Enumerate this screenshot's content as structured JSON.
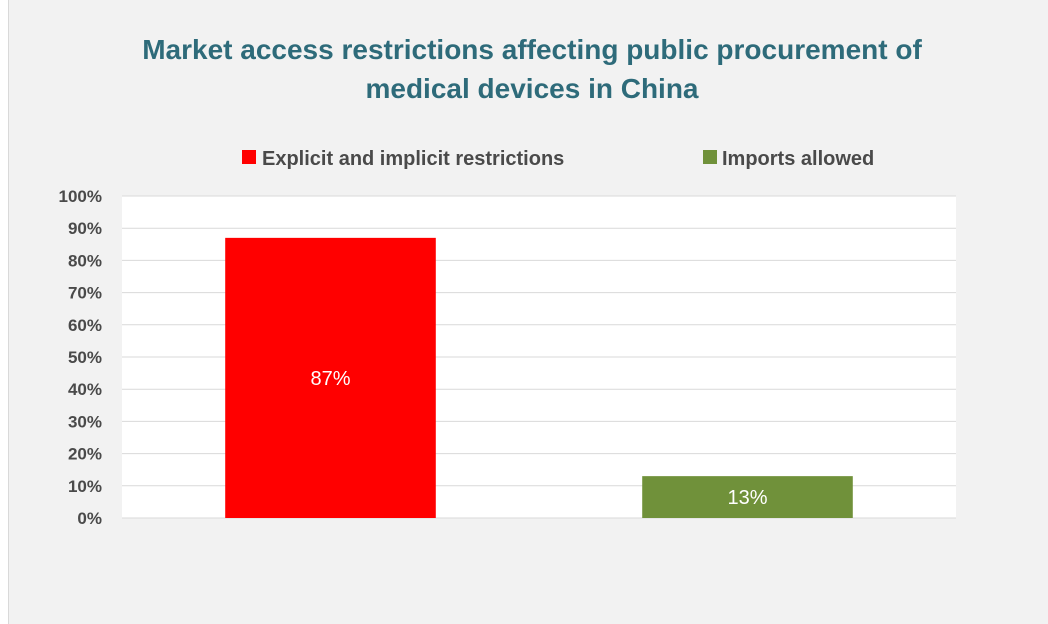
{
  "chart_data": {
    "type": "bar",
    "title_lines": [
      "Market access restrictions affecting public procurement of",
      "medical devices in China"
    ],
    "categories": [
      "Explicit and implicit restrictions",
      "Imports allowed"
    ],
    "values": [
      87,
      13
    ],
    "data_labels": [
      "87%",
      "13%"
    ],
    "colors": [
      "#ff0000",
      "#70913a"
    ],
    "ylim": [
      0,
      100
    ],
    "y_ticks": [
      0,
      10,
      20,
      30,
      40,
      50,
      60,
      70,
      80,
      90,
      100
    ],
    "y_tick_labels": [
      "0%",
      "10%",
      "20%",
      "30%",
      "40%",
      "50%",
      "60%",
      "70%",
      "80%",
      "90%",
      "100%"
    ],
    "grid": true,
    "legend_position": "top"
  }
}
